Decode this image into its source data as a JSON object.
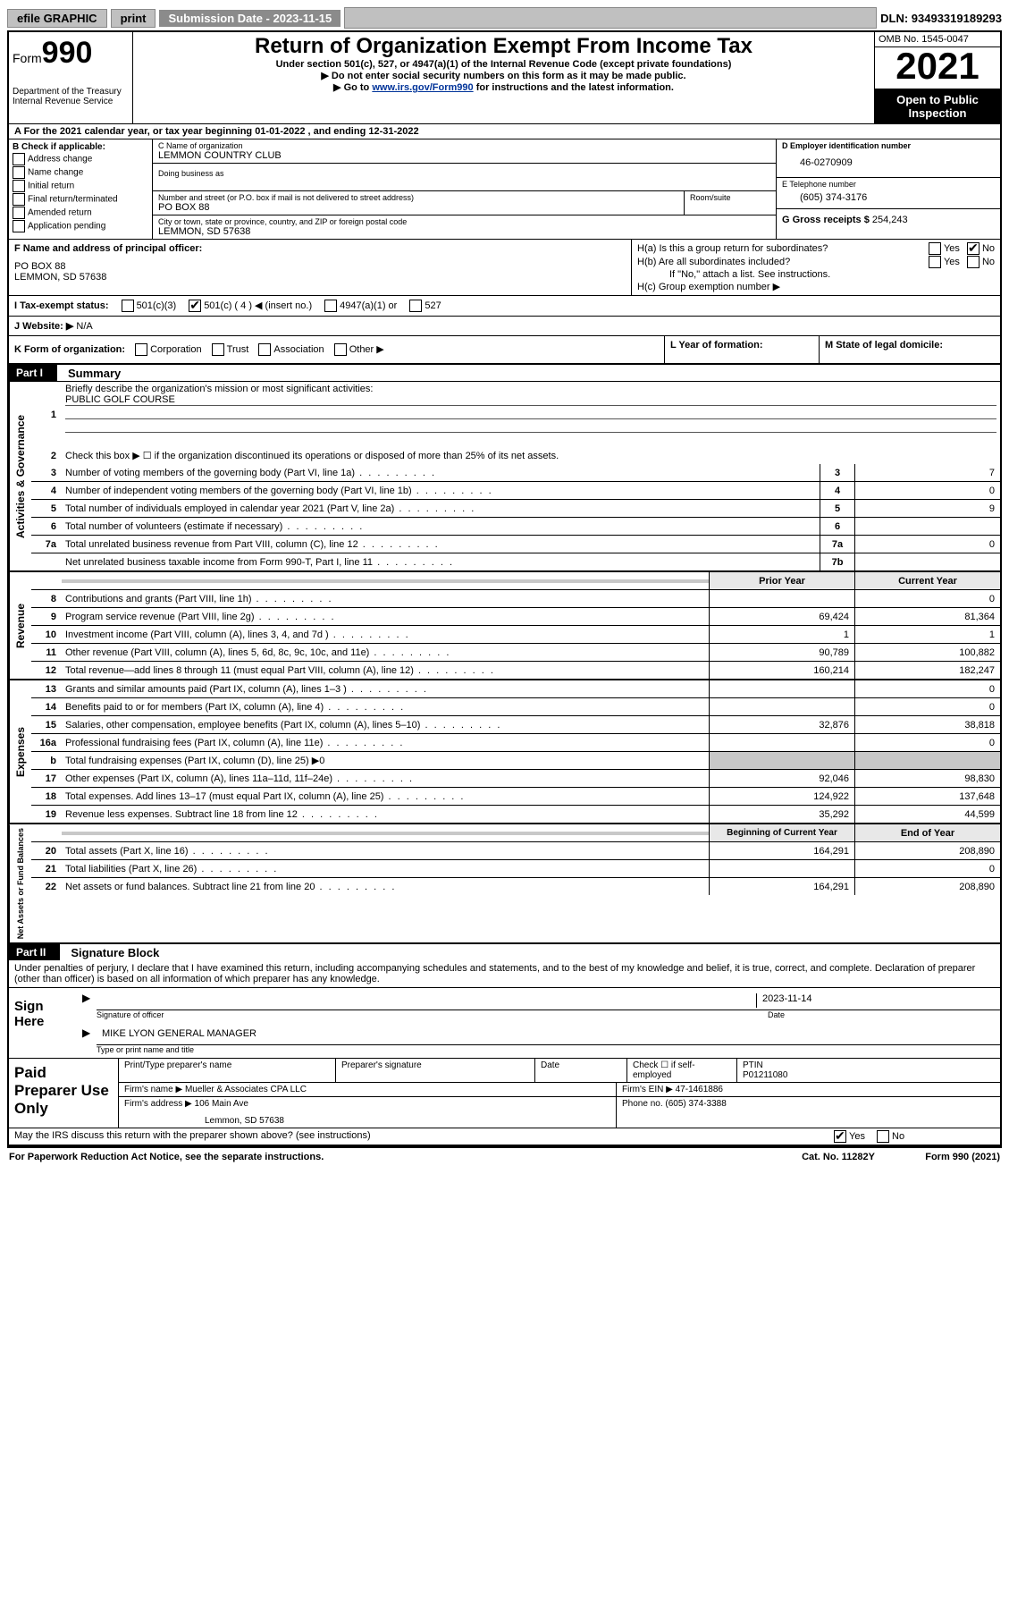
{
  "topbar": {
    "efile": "efile GRAPHIC",
    "print": "print",
    "submission": "Submission Date - 2023-11-15",
    "dln": "DLN: 93493319189293"
  },
  "header": {
    "form_label": "Form",
    "form_number": "990",
    "dept": "Department of the Treasury",
    "irs": "Internal Revenue Service",
    "title": "Return of Organization Exempt From Income Tax",
    "subtitle": "Under section 501(c), 527, or 4947(a)(1) of the Internal Revenue Code (except private foundations)",
    "note1": "▶ Do not enter social security numbers on this form as it may be made public.",
    "note2_pre": "▶ Go to ",
    "note2_link": "www.irs.gov/Form990",
    "note2_post": " for instructions and the latest information.",
    "omb": "OMB No. 1545-0047",
    "year": "2021",
    "open": "Open to Public Inspection"
  },
  "row_a": "A For the 2021 calendar year, or tax year beginning 01-01-2022   , and ending 12-31-2022",
  "col_b": {
    "label": "B Check if applicable:",
    "items": [
      "Address change",
      "Name change",
      "Initial return",
      "Final return/terminated",
      "Amended return",
      "Application pending"
    ]
  },
  "col_c": {
    "name_label": "C Name of organization",
    "name": "LEMMON COUNTRY CLUB",
    "dba_label": "Doing business as",
    "street_label": "Number and street (or P.O. box if mail is not delivered to street address)",
    "street": "PO BOX 88",
    "room_label": "Room/suite",
    "city_label": "City or town, state or province, country, and ZIP or foreign postal code",
    "city": "LEMMON, SD  57638"
  },
  "col_d": {
    "ein_label": "D Employer identification number",
    "ein": "46-0270909",
    "phone_label": "E Telephone number",
    "phone": "(605) 374-3176",
    "gross_label": "G Gross receipts $",
    "gross": "254,243"
  },
  "col_f": {
    "label": "F Name and address of principal officer:",
    "line1": "PO BOX 88",
    "line2": "LEMMON, SD  57638"
  },
  "col_h": {
    "ha": "H(a)  Is this a group return for subordinates?",
    "hb": "H(b)  Are all subordinates included?",
    "hb_note": "If \"No,\" attach a list. See instructions.",
    "hc": "H(c)  Group exemption number ▶"
  },
  "row_i": {
    "label": "I   Tax-exempt status:",
    "opts": [
      "501(c)(3)",
      "501(c) ( 4 ) ◀ (insert no.)",
      "4947(a)(1) or",
      "527"
    ]
  },
  "row_j": {
    "label": "J   Website: ▶",
    "val": "N/A"
  },
  "row_k": "K Form of organization:",
  "row_k_opts": [
    "Corporation",
    "Trust",
    "Association",
    "Other ▶"
  ],
  "col_l": "L Year of formation:",
  "col_m": "M State of legal domicile:",
  "part1": {
    "hdr": "Part I",
    "title": "Summary"
  },
  "gov": {
    "label": "Activities & Governance",
    "l1": "Briefly describe the organization's mission or most significant activities:",
    "l1v": "PUBLIC GOLF COURSE",
    "l2": "Check this box ▶ ☐  if the organization discontinued its operations or disposed of more than 25% of its net assets.",
    "l3": "Number of voting members of the governing body (Part VI, line 1a)",
    "l3v": "7",
    "l4": "Number of independent voting members of the governing body (Part VI, line 1b)",
    "l4v": "0",
    "l5": "Total number of individuals employed in calendar year 2021 (Part V, line 2a)",
    "l5v": "9",
    "l6": "Total number of volunteers (estimate if necessary)",
    "l6v": "",
    "l7a": "Total unrelated business revenue from Part VIII, column (C), line 12",
    "l7av": "0",
    "l7b": "Net unrelated business taxable income from Form 990-T, Part I, line 11",
    "l7bv": ""
  },
  "twocol_hdr": {
    "prior": "Prior Year",
    "current": "Current Year"
  },
  "rev": {
    "label": "Revenue",
    "rows": [
      {
        "n": "8",
        "t": "Contributions and grants (Part VIII, line 1h)",
        "p": "",
        "c": "0"
      },
      {
        "n": "9",
        "t": "Program service revenue (Part VIII, line 2g)",
        "p": "69,424",
        "c": "81,364"
      },
      {
        "n": "10",
        "t": "Investment income (Part VIII, column (A), lines 3, 4, and 7d )",
        "p": "1",
        "c": "1"
      },
      {
        "n": "11",
        "t": "Other revenue (Part VIII, column (A), lines 5, 6d, 8c, 9c, 10c, and 11e)",
        "p": "90,789",
        "c": "100,882"
      },
      {
        "n": "12",
        "t": "Total revenue—add lines 8 through 11 (must equal Part VIII, column (A), line 12)",
        "p": "160,214",
        "c": "182,247"
      }
    ]
  },
  "exp": {
    "label": "Expenses",
    "rows": [
      {
        "n": "13",
        "t": "Grants and similar amounts paid (Part IX, column (A), lines 1–3 )",
        "p": "",
        "c": "0"
      },
      {
        "n": "14",
        "t": "Benefits paid to or for members (Part IX, column (A), line 4)",
        "p": "",
        "c": "0"
      },
      {
        "n": "15",
        "t": "Salaries, other compensation, employee benefits (Part IX, column (A), lines 5–10)",
        "p": "32,876",
        "c": "38,818"
      },
      {
        "n": "16a",
        "t": "Professional fundraising fees (Part IX, column (A), line 11e)",
        "p": "",
        "c": "0"
      },
      {
        "n": "b",
        "t": "Total fundraising expenses (Part IX, column (D), line 25) ▶0",
        "p": null,
        "c": null
      },
      {
        "n": "17",
        "t": "Other expenses (Part IX, column (A), lines 11a–11d, 11f–24e)",
        "p": "92,046",
        "c": "98,830"
      },
      {
        "n": "18",
        "t": "Total expenses. Add lines 13–17 (must equal Part IX, column (A), line 25)",
        "p": "124,922",
        "c": "137,648"
      },
      {
        "n": "19",
        "t": "Revenue less expenses. Subtract line 18 from line 12",
        "p": "35,292",
        "c": "44,599"
      }
    ]
  },
  "net_hdr": {
    "beg": "Beginning of Current Year",
    "end": "End of Year"
  },
  "net": {
    "label": "Net Assets or Fund Balances",
    "rows": [
      {
        "n": "20",
        "t": "Total assets (Part X, line 16)",
        "p": "164,291",
        "c": "208,890"
      },
      {
        "n": "21",
        "t": "Total liabilities (Part X, line 26)",
        "p": "",
        "c": "0"
      },
      {
        "n": "22",
        "t": "Net assets or fund balances. Subtract line 21 from line 20",
        "p": "164,291",
        "c": "208,890"
      }
    ]
  },
  "part2": {
    "hdr": "Part II",
    "title": "Signature Block"
  },
  "penalty": "Under penalties of perjury, I declare that I have examined this return, including accompanying schedules and statements, and to the best of my knowledge and belief, it is true, correct, and complete. Declaration of preparer (other than officer) is based on all information of which preparer has any knowledge.",
  "sign": {
    "label": "Sign Here",
    "date": "2023-11-14",
    "sig_label": "Signature of officer",
    "date_label": "Date",
    "name": "MIKE LYON  GENERAL MANAGER",
    "name_label": "Type or print name and title"
  },
  "paid": {
    "label": "Paid Preparer Use Only",
    "h1": "Print/Type preparer's name",
    "h2": "Preparer's signature",
    "h3": "Date",
    "h4_check": "Check ☐ if self-employed",
    "h4_ptin": "PTIN",
    "ptin": "P01211080",
    "firm_label": "Firm's name    ▶",
    "firm": "Mueller & Associates CPA LLC",
    "ein_label": "Firm's EIN ▶",
    "ein": "47-1461886",
    "addr_label": "Firm's address ▶",
    "addr1": "106 Main Ave",
    "addr2": "Lemmon, SD  57638",
    "phone_label": "Phone no.",
    "phone": "(605) 374-3388"
  },
  "discuss": "May the IRS discuss this return with the preparer shown above? (see instructions)",
  "footer": {
    "left": "For Paperwork Reduction Act Notice, see the separate instructions.",
    "mid": "Cat. No. 11282Y",
    "right": "Form 990 (2021)"
  }
}
